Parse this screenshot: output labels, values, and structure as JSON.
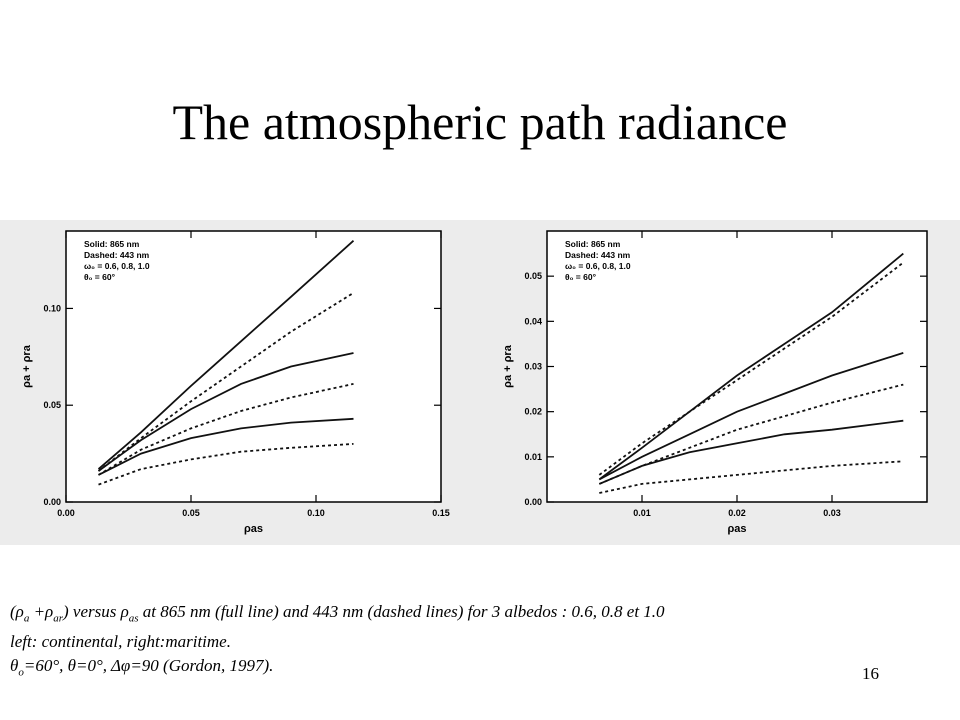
{
  "slide": {
    "title": "The atmospheric path radiance",
    "number": "16"
  },
  "caption": {
    "line1_parts": [
      {
        "t": "(ρ"
      },
      {
        "sub": "a"
      },
      {
        "t": " +ρ"
      },
      {
        "sub": "ar"
      },
      {
        "t": ") versus  ρ"
      },
      {
        "sub": "as"
      },
      {
        "t": " at 865 nm (full line) and 443 nm (dashed lines) for 3 albedos : 0.6, 0.8 et 1.0"
      }
    ],
    "line2": "left: continental, right:maritime.",
    "line3_parts": [
      {
        "t": "θ"
      },
      {
        "sub": "o"
      },
      {
        "t": "=60°, θ=0°, Δφ=90 (Gordon, 1997)."
      }
    ]
  },
  "chart_data": [
    {
      "type": "line",
      "legend_lines": [
        "Solid:   865 nm",
        "Dashed:  443 nm",
        "ω₀ = 0.6, 0.8, 1.0",
        "θ₀ = 60°"
      ],
      "legend_position": "top-left",
      "ylabel": "ρa + ρra",
      "xlabel": "ρas",
      "xlim": [
        0.0,
        0.15
      ],
      "ylim": [
        0.0,
        0.14
      ],
      "xticks": [
        0.0,
        0.05,
        0.1,
        0.15
      ],
      "xtick_labels": [
        "0.00",
        "0.05",
        "0.10",
        "0.15"
      ],
      "yticks": [
        0.0,
        0.05,
        0.1
      ],
      "ytick_labels": [
        "0.00",
        "0.05",
        "0.10"
      ],
      "series": [
        {
          "style": "solid",
          "x": [
            0.013,
            0.03,
            0.05,
            0.07,
            0.09,
            0.115
          ],
          "y": [
            0.017,
            0.036,
            0.06,
            0.083,
            0.106,
            0.135
          ]
        },
        {
          "style": "dashed",
          "x": [
            0.013,
            0.03,
            0.05,
            0.07,
            0.09,
            0.115
          ],
          "y": [
            0.016,
            0.033,
            0.052,
            0.07,
            0.088,
            0.108
          ]
        },
        {
          "style": "solid",
          "x": [
            0.013,
            0.03,
            0.05,
            0.07,
            0.09,
            0.115
          ],
          "y": [
            0.016,
            0.032,
            0.048,
            0.061,
            0.07,
            0.077
          ]
        },
        {
          "style": "dashed",
          "x": [
            0.013,
            0.03,
            0.05,
            0.07,
            0.09,
            0.115
          ],
          "y": [
            0.014,
            0.027,
            0.038,
            0.047,
            0.054,
            0.061
          ]
        },
        {
          "style": "solid",
          "x": [
            0.013,
            0.03,
            0.05,
            0.07,
            0.09,
            0.115
          ],
          "y": [
            0.014,
            0.025,
            0.033,
            0.038,
            0.041,
            0.043
          ]
        },
        {
          "style": "dashed",
          "x": [
            0.013,
            0.03,
            0.05,
            0.07,
            0.09,
            0.115
          ],
          "y": [
            0.009,
            0.017,
            0.022,
            0.026,
            0.028,
            0.03
          ]
        }
      ]
    },
    {
      "type": "line",
      "legend_lines": [
        "Solid:   865 nm",
        "Dashed:  443 nm",
        "ω₀ = 0.6, 0.8, 1.0",
        "θ₀ = 60°"
      ],
      "legend_position": "top-left",
      "ylabel": "ρa + ρra",
      "xlabel": "ρas",
      "xlim": [
        0.0,
        0.04
      ],
      "ylim": [
        0.0,
        0.06
      ],
      "xticks": [
        0.01,
        0.02,
        0.03
      ],
      "xtick_labels": [
        "0.01",
        "0.02",
        "0.03"
      ],
      "yticks": [
        0.0,
        0.01,
        0.02,
        0.03,
        0.04,
        0.05
      ],
      "ytick_labels": [
        "0.00",
        "0.01",
        "0.02",
        "0.03",
        "0.04",
        "0.05"
      ],
      "series": [
        {
          "style": "solid",
          "x": [
            0.0055,
            0.01,
            0.015,
            0.02,
            0.025,
            0.03,
            0.0375
          ],
          "y": [
            0.005,
            0.012,
            0.02,
            0.028,
            0.035,
            0.042,
            0.055
          ]
        },
        {
          "style": "dashed",
          "x": [
            0.0055,
            0.01,
            0.015,
            0.02,
            0.025,
            0.03,
            0.0375
          ],
          "y": [
            0.006,
            0.013,
            0.02,
            0.027,
            0.034,
            0.041,
            0.053
          ]
        },
        {
          "style": "solid",
          "x": [
            0.0055,
            0.01,
            0.015,
            0.02,
            0.025,
            0.03,
            0.0375
          ],
          "y": [
            0.005,
            0.01,
            0.015,
            0.02,
            0.024,
            0.028,
            0.033
          ]
        },
        {
          "style": "dashed",
          "x": [
            0.0055,
            0.01,
            0.015,
            0.02,
            0.025,
            0.03,
            0.0375
          ],
          "y": [
            0.004,
            0.008,
            0.012,
            0.016,
            0.019,
            0.022,
            0.026
          ]
        },
        {
          "style": "solid",
          "x": [
            0.0055,
            0.01,
            0.015,
            0.02,
            0.025,
            0.03,
            0.0375
          ],
          "y": [
            0.004,
            0.008,
            0.011,
            0.013,
            0.015,
            0.016,
            0.018
          ]
        },
        {
          "style": "dashed",
          "x": [
            0.0055,
            0.01,
            0.015,
            0.02,
            0.025,
            0.03,
            0.0375
          ],
          "y": [
            0.002,
            0.004,
            0.005,
            0.006,
            0.007,
            0.008,
            0.009
          ]
        }
      ]
    }
  ]
}
